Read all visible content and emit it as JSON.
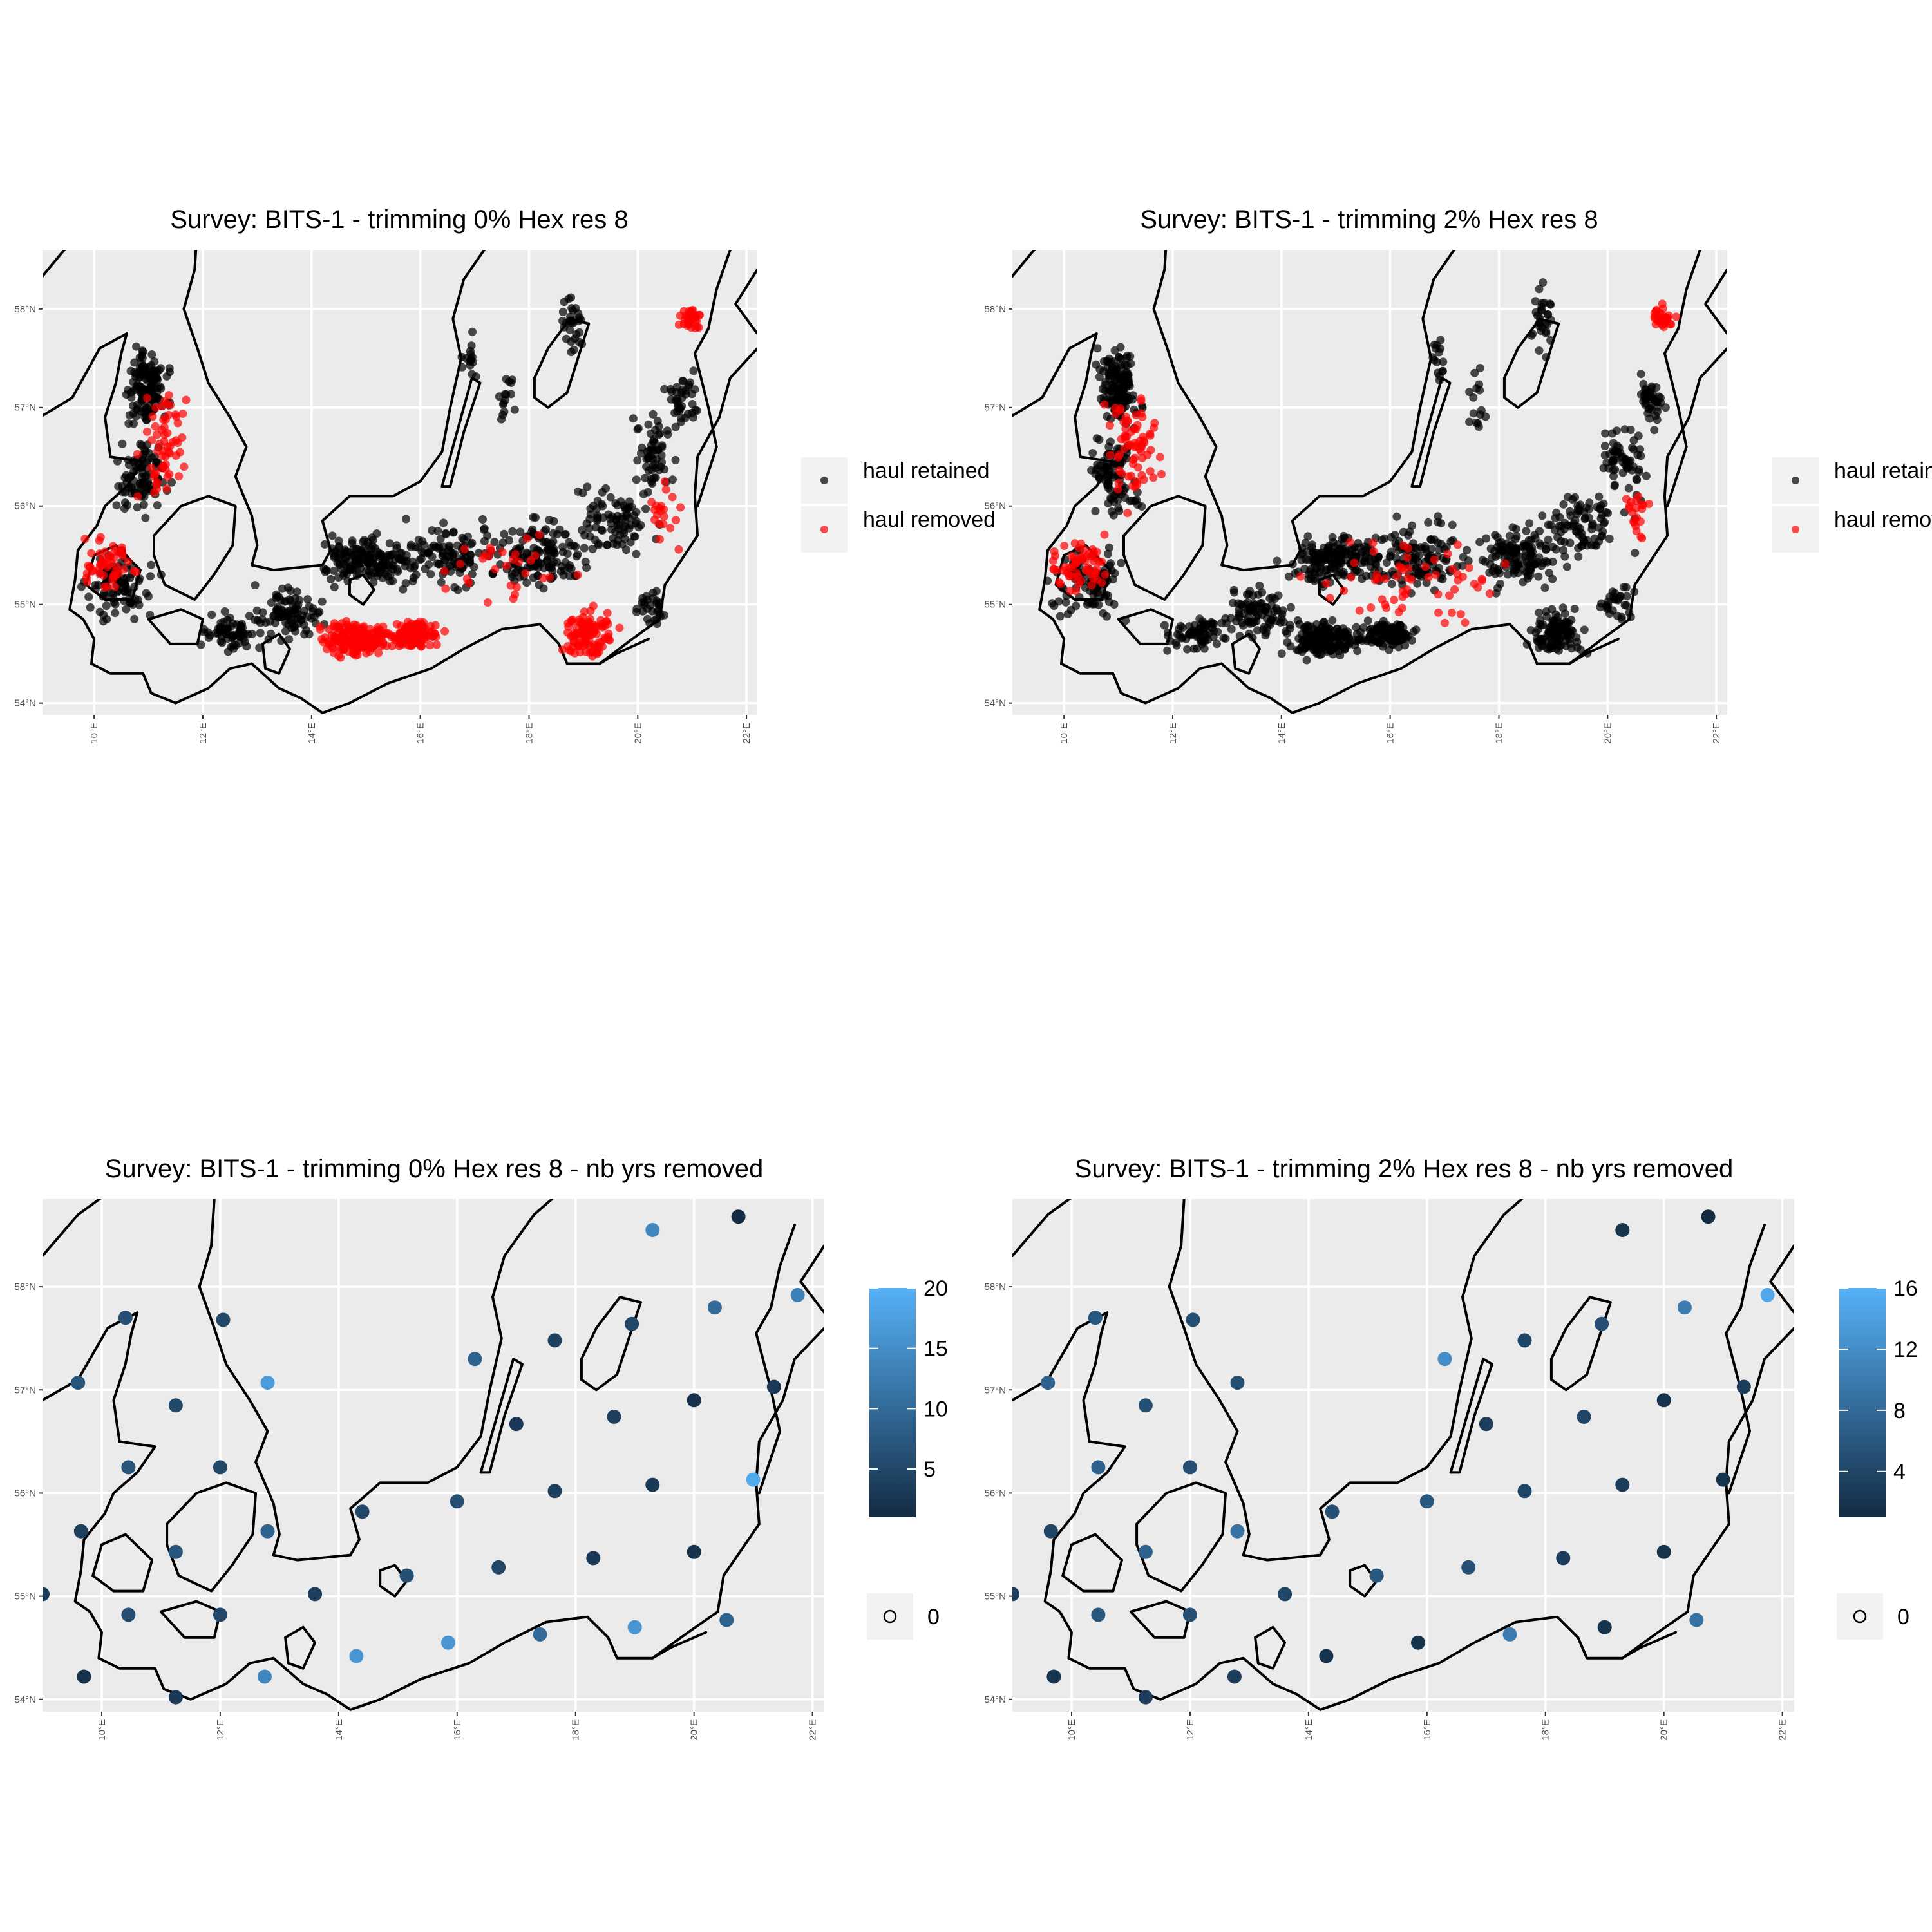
{
  "panels": [
    {
      "id": "p1",
      "title": "Survey: BITS-1 - trimming 0% Hex res 8",
      "kind": "points",
      "legend": {
        "items": [
          {
            "label": "haul retained",
            "color": "#000000"
          },
          {
            "label": "haul removed",
            "color": "#ff0000"
          }
        ]
      },
      "removed_clusters": [
        {
          "lon": 14.8,
          "lat": 54.65,
          "count": 180,
          "spread": [
            0.7,
            0.18
          ]
        },
        {
          "lon": 15.9,
          "lat": 54.7,
          "count": 120,
          "spread": [
            0.5,
            0.15
          ]
        },
        {
          "lon": 19.1,
          "lat": 54.7,
          "count": 110,
          "spread": [
            0.5,
            0.25
          ]
        },
        {
          "lon": 21.0,
          "lat": 57.9,
          "count": 30,
          "spread": [
            0.25,
            0.15
          ]
        },
        {
          "lon": 11.3,
          "lat": 56.6,
          "count": 60,
          "spread": [
            0.5,
            0.6
          ]
        },
        {
          "lon": 10.3,
          "lat": 55.4,
          "count": 50,
          "spread": [
            0.6,
            0.3
          ]
        },
        {
          "lon": 20.5,
          "lat": 55.9,
          "count": 20,
          "spread": [
            0.3,
            0.3
          ]
        },
        {
          "lon": 17.5,
          "lat": 55.4,
          "count": 30,
          "spread": [
            1.2,
            0.4
          ]
        }
      ]
    },
    {
      "id": "p2",
      "title": "Survey: BITS-1 - trimming 2% Hex res 8",
      "kind": "points",
      "legend": {
        "items": [
          {
            "label": "haul retained",
            "color": "#000000"
          },
          {
            "label": "haul removed",
            "color": "#ff0000"
          }
        ]
      },
      "removed_clusters": [
        {
          "lon": 21.0,
          "lat": 57.9,
          "count": 30,
          "spread": [
            0.25,
            0.15
          ]
        },
        {
          "lon": 11.3,
          "lat": 56.6,
          "count": 70,
          "spread": [
            0.5,
            0.6
          ]
        },
        {
          "lon": 10.3,
          "lat": 55.4,
          "count": 60,
          "spread": [
            0.6,
            0.3
          ]
        },
        {
          "lon": 20.5,
          "lat": 55.9,
          "count": 20,
          "spread": [
            0.3,
            0.3
          ]
        },
        {
          "lon": 16.5,
          "lat": 55.3,
          "count": 60,
          "spread": [
            2.0,
            0.5
          ]
        }
      ]
    },
    {
      "id": "p3",
      "title": "Survey: BITS-1 - trimming 0% Hex res 8 - nb yrs removed",
      "kind": "hex",
      "colorbar": {
        "min": 1,
        "max": 20,
        "ticks": [
          5,
          10,
          15,
          20
        ]
      },
      "zero_label": "0",
      "hexes": [
        {
          "lon": 9.6,
          "lat": 57.07,
          "v": 7
        },
        {
          "lon": 10.4,
          "lat": 57.7,
          "v": 6
        },
        {
          "lon": 12.05,
          "lat": 57.68,
          "v": 5
        },
        {
          "lon": 11.25,
          "lat": 56.85,
          "v": 5
        },
        {
          "lon": 12.8,
          "lat": 57.07,
          "v": 17
        },
        {
          "lon": 10.45,
          "lat": 56.25,
          "v": 7
        },
        {
          "lon": 12.0,
          "lat": 56.25,
          "v": 5
        },
        {
          "lon": 9.65,
          "lat": 55.63,
          "v": 4
        },
        {
          "lon": 11.25,
          "lat": 55.43,
          "v": 7
        },
        {
          "lon": 12.8,
          "lat": 55.63,
          "v": 9
        },
        {
          "lon": 14.4,
          "lat": 55.82,
          "v": 5
        },
        {
          "lon": 9.0,
          "lat": 55.02,
          "v": 3
        },
        {
          "lon": 10.45,
          "lat": 54.82,
          "v": 6
        },
        {
          "lon": 12.0,
          "lat": 54.82,
          "v": 5
        },
        {
          "lon": 13.6,
          "lat": 55.02,
          "v": 4
        },
        {
          "lon": 15.15,
          "lat": 55.2,
          "v": 6
        },
        {
          "lon": 9.7,
          "lat": 54.22,
          "v": 2
        },
        {
          "lon": 11.25,
          "lat": 54.02,
          "v": 3
        },
        {
          "lon": 12.75,
          "lat": 54.22,
          "v": 14
        },
        {
          "lon": 14.3,
          "lat": 54.42,
          "v": 16
        },
        {
          "lon": 15.85,
          "lat": 54.55,
          "v": 16
        },
        {
          "lon": 16.0,
          "lat": 55.92,
          "v": 6
        },
        {
          "lon": 16.7,
          "lat": 55.28,
          "v": 5
        },
        {
          "lon": 17.4,
          "lat": 54.63,
          "v": 10
        },
        {
          "lon": 18.3,
          "lat": 55.37,
          "v": 3
        },
        {
          "lon": 19.0,
          "lat": 54.7,
          "v": 16
        },
        {
          "lon": 20.0,
          "lat": 55.43,
          "v": 2
        },
        {
          "lon": 20.55,
          "lat": 54.77,
          "v": 9
        },
        {
          "lon": 16.3,
          "lat": 57.3,
          "v": 9
        },
        {
          "lon": 17.0,
          "lat": 56.67,
          "v": 3
        },
        {
          "lon": 17.65,
          "lat": 57.48,
          "v": 4
        },
        {
          "lon": 17.65,
          "lat": 56.02,
          "v": 4
        },
        {
          "lon": 18.65,
          "lat": 56.74,
          "v": 4
        },
        {
          "lon": 19.3,
          "lat": 56.08,
          "v": 3
        },
        {
          "lon": 18.95,
          "lat": 57.64,
          "v": 5
        },
        {
          "lon": 20.0,
          "lat": 56.9,
          "v": 2
        },
        {
          "lon": 20.35,
          "lat": 57.8,
          "v": 10
        },
        {
          "lon": 21.0,
          "lat": 56.13,
          "v": 19
        },
        {
          "lon": 21.35,
          "lat": 57.03,
          "v": 3
        },
        {
          "lon": 19.3,
          "lat": 58.55,
          "v": 14
        },
        {
          "lon": 20.75,
          "lat": 58.68,
          "v": 1
        },
        {
          "lon": 21.75,
          "lat": 57.92,
          "v": 13
        }
      ]
    },
    {
      "id": "p4",
      "title": "Survey: BITS-1 - trimming 2% Hex res 8 - nb yrs removed",
      "kind": "hex",
      "colorbar": {
        "min": 1,
        "max": 16,
        "ticks": [
          4,
          8,
          12,
          16
        ]
      },
      "zero_label": "0",
      "hexes": [
        {
          "lon": 9.6,
          "lat": 57.07,
          "v": 7
        },
        {
          "lon": 10.4,
          "lat": 57.7,
          "v": 6
        },
        {
          "lon": 12.05,
          "lat": 57.68,
          "v": 5
        },
        {
          "lon": 11.25,
          "lat": 56.85,
          "v": 5
        },
        {
          "lon": 12.8,
          "lat": 57.07,
          "v": 5
        },
        {
          "lon": 10.45,
          "lat": 56.25,
          "v": 7
        },
        {
          "lon": 12.0,
          "lat": 56.25,
          "v": 5
        },
        {
          "lon": 9.65,
          "lat": 55.63,
          "v": 4
        },
        {
          "lon": 11.25,
          "lat": 55.43,
          "v": 7
        },
        {
          "lon": 12.8,
          "lat": 55.63,
          "v": 9
        },
        {
          "lon": 14.4,
          "lat": 55.82,
          "v": 5
        },
        {
          "lon": 9.0,
          "lat": 55.02,
          "v": 3
        },
        {
          "lon": 10.45,
          "lat": 54.82,
          "v": 6
        },
        {
          "lon": 12.0,
          "lat": 54.82,
          "v": 5
        },
        {
          "lon": 13.6,
          "lat": 55.02,
          "v": 4
        },
        {
          "lon": 15.15,
          "lat": 55.2,
          "v": 6
        },
        {
          "lon": 9.7,
          "lat": 54.22,
          "v": 2
        },
        {
          "lon": 11.25,
          "lat": 54.02,
          "v": 3
        },
        {
          "lon": 12.75,
          "lat": 54.22,
          "v": 3
        },
        {
          "lon": 14.3,
          "lat": 54.42,
          "v": 2
        },
        {
          "lon": 15.85,
          "lat": 54.55,
          "v": 2
        },
        {
          "lon": 16.0,
          "lat": 55.92,
          "v": 6
        },
        {
          "lon": 16.7,
          "lat": 55.28,
          "v": 5
        },
        {
          "lon": 17.4,
          "lat": 54.63,
          "v": 10
        },
        {
          "lon": 18.3,
          "lat": 55.37,
          "v": 3
        },
        {
          "lon": 19.0,
          "lat": 54.7,
          "v": 2
        },
        {
          "lon": 20.0,
          "lat": 55.43,
          "v": 2
        },
        {
          "lon": 20.55,
          "lat": 54.77,
          "v": 9
        },
        {
          "lon": 16.3,
          "lat": 57.3,
          "v": 12
        },
        {
          "lon": 17.0,
          "lat": 56.67,
          "v": 3
        },
        {
          "lon": 17.65,
          "lat": 57.48,
          "v": 4
        },
        {
          "lon": 17.65,
          "lat": 56.02,
          "v": 4
        },
        {
          "lon": 18.65,
          "lat": 56.74,
          "v": 4
        },
        {
          "lon": 19.3,
          "lat": 56.08,
          "v": 3
        },
        {
          "lon": 18.95,
          "lat": 57.64,
          "v": 5
        },
        {
          "lon": 20.0,
          "lat": 56.9,
          "v": 2
        },
        {
          "lon": 20.35,
          "lat": 57.8,
          "v": 10
        },
        {
          "lon": 21.0,
          "lat": 56.13,
          "v": 2
        },
        {
          "lon": 21.35,
          "lat": 57.03,
          "v": 3
        },
        {
          "lon": 19.3,
          "lat": 58.55,
          "v": 2
        },
        {
          "lon": 20.75,
          "lat": 58.68,
          "v": 1
        },
        {
          "lon": 21.75,
          "lat": 57.92,
          "v": 15
        }
      ]
    }
  ],
  "axes": {
    "x_ticks": [
      {
        "v": 10,
        "label": "10°E"
      },
      {
        "v": 12,
        "label": "12°E"
      },
      {
        "v": 14,
        "label": "14°E"
      },
      {
        "v": 16,
        "label": "16°E"
      },
      {
        "v": 18,
        "label": "18°E"
      },
      {
        "v": 20,
        "label": "20°E"
      },
      {
        "v": 22,
        "label": "22°E"
      }
    ],
    "y_ticks": [
      {
        "v": 54,
        "label": "54°N"
      },
      {
        "v": 55,
        "label": "55°N"
      },
      {
        "v": 56,
        "label": "56°N"
      },
      {
        "v": 57,
        "label": "57°N"
      },
      {
        "v": 58,
        "label": "58°N"
      }
    ],
    "xlim": [
      9.0,
      22.2
    ],
    "ylim": [
      53.9,
      58.7
    ]
  },
  "colors": {
    "panel_bg": "#ebebeb",
    "retained": "#000000",
    "removed": "#ff0000",
    "low": "#132b43",
    "high": "#56b1f7"
  }
}
